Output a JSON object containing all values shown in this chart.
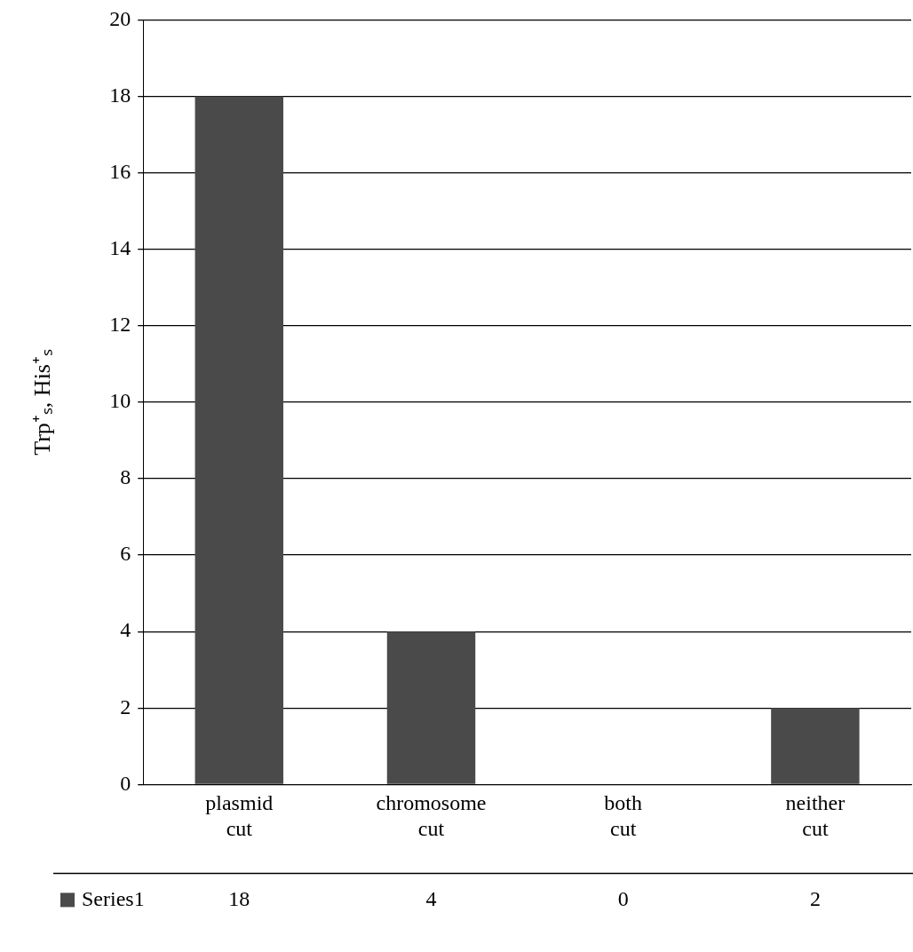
{
  "chart_data": {
    "type": "bar",
    "ylabel": "Trp⁺ₛ, His⁺ₛ",
    "categories": [
      "plasmid cut",
      "chromosome cut",
      "both cut",
      "neither cut"
    ],
    "series": [
      {
        "name": "Series1",
        "color": "#4a4a4a",
        "values": [
          18,
          4,
          0,
          2
        ]
      }
    ],
    "ylim": [
      0,
      20
    ],
    "yticks": [
      0,
      2,
      4,
      6,
      8,
      10,
      12,
      14,
      16,
      18,
      20
    ],
    "grid": "y",
    "legend": "bottom",
    "data_labels": true
  }
}
